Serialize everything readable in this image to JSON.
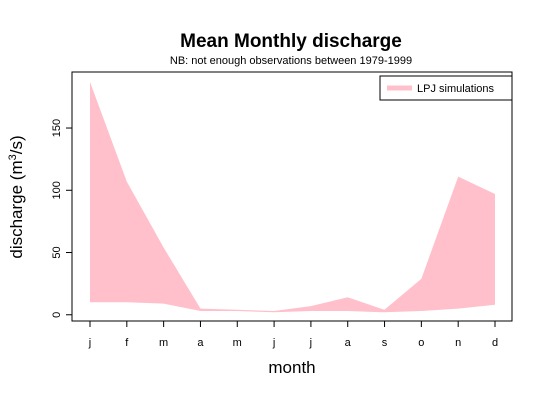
{
  "chart_data": {
    "type": "area",
    "title": "Mean Monthly discharge",
    "subtitle": "NB: not enough observations between 1979-1999",
    "xlabel": "month",
    "ylabel_main": "discharge (m",
    "ylabel_sup": "3",
    "ylabel_end": "/s)",
    "categories": [
      "j",
      "f",
      "m",
      "a",
      "m",
      "j",
      "j",
      "a",
      "s",
      "o",
      "n",
      "d"
    ],
    "ylim": [
      -5,
      195
    ],
    "yticks": [
      0,
      50,
      100,
      150
    ],
    "ytick_labels": [
      "0",
      "50",
      "100",
      "150"
    ],
    "series": [
      {
        "name": "LPJ simulations",
        "color": "#ffc0cb",
        "upper": [
          187,
          107,
          54,
          5,
          4,
          3,
          7,
          14,
          4,
          29,
          111,
          97
        ],
        "lower": [
          10,
          10,
          9,
          3,
          3,
          2,
          3,
          3,
          2,
          3,
          5,
          8
        ]
      }
    ],
    "legend_position": "top-right",
    "grid": false
  }
}
